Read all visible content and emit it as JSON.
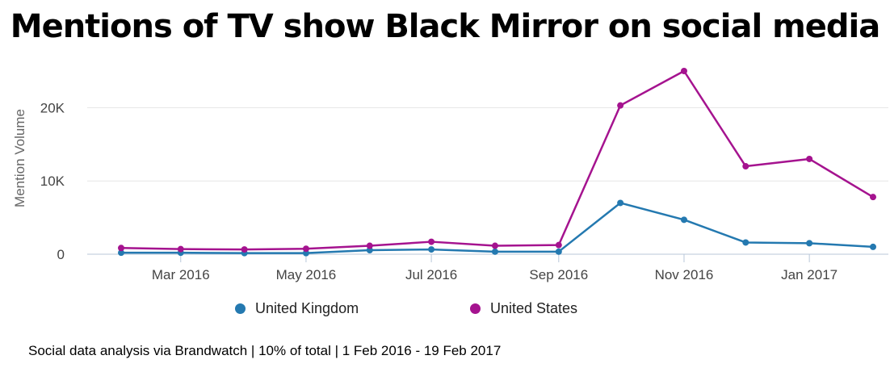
{
  "chart_data": {
    "type": "line",
    "title": "Mentions of TV show Black Mirror on social media",
    "ylabel": "Mention Volume",
    "xlabel": "",
    "x": [
      "2016-02-01",
      "2016-03-01",
      "2016-04-01",
      "2016-05-01",
      "2016-06-01",
      "2016-07-01",
      "2016-08-01",
      "2016-09-01",
      "2016-10-01",
      "2016-11-01",
      "2016-12-01",
      "2017-01-01",
      "2017-02-01"
    ],
    "x_tick_labels": [
      {
        "x": "2016-03-01",
        "label": "Mar 2016"
      },
      {
        "x": "2016-05-01",
        "label": "May 2016"
      },
      {
        "x": "2016-07-01",
        "label": "Jul 2016"
      },
      {
        "x": "2016-09-01",
        "label": "Sep 2016"
      },
      {
        "x": "2016-11-01",
        "label": "Nov 2016"
      },
      {
        "x": "2017-01-01",
        "label": "Jan 2017"
      }
    ],
    "y_ticks": [
      0,
      10000,
      20000
    ],
    "y_tick_labels": [
      "0",
      "10K",
      "20K"
    ],
    "ylim": [
      0,
      25000
    ],
    "grid": "horizontal",
    "legend_position": "bottom",
    "series": [
      {
        "name": "United Kingdom",
        "color": "#2479b0",
        "values": [
          200,
          200,
          150,
          150,
          550,
          650,
          350,
          350,
          7000,
          4700,
          1600,
          1500,
          1000
        ]
      },
      {
        "name": "United States",
        "color": "#a5138f",
        "values": [
          850,
          700,
          650,
          750,
          1150,
          1700,
          1150,
          1250,
          20300,
          25000,
          12000,
          13000,
          7800
        ]
      }
    ]
  },
  "footer": "Social data analysis via Brandwatch | 10% of total | 1 Feb 2016 - 19 Feb 2017"
}
